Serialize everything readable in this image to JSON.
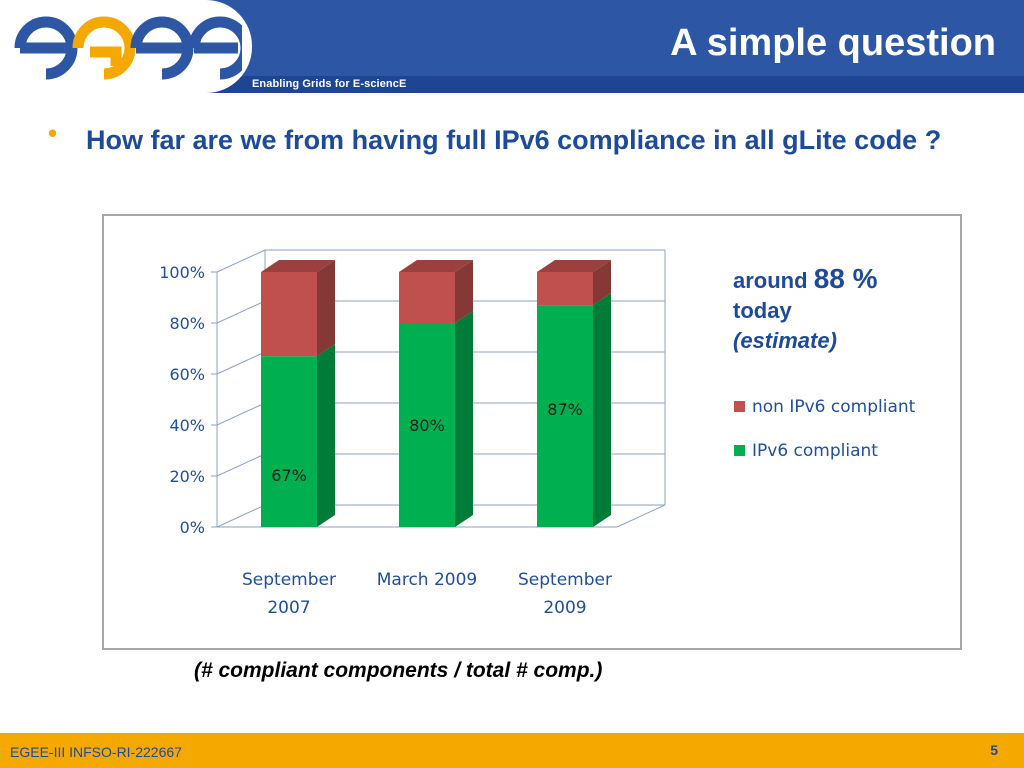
{
  "header": {
    "logo_text": "egee",
    "tagline": "Enabling Grids for E-sciencE",
    "title": "A simple question"
  },
  "bullet": {
    "text": "How far are we from having full IPv6 compliance in all gLite code ?"
  },
  "note": {
    "around": "around",
    "percent": "88 %",
    "today": "today",
    "estimate": "(estimate)"
  },
  "caption": "(# compliant components / total # comp.)",
  "footer": {
    "left": "EGEE-III INFSO-RI-222667",
    "page": "5"
  },
  "colors": {
    "header_blue": "#2d57a5",
    "text_blue": "#1e4a9a",
    "footer_orange": "#f5a800",
    "compliant_green": "#00b050",
    "noncompliant_red": "#c0504d"
  },
  "chart_data": {
    "type": "bar",
    "stacked": true,
    "three_d": true,
    "categories": [
      [
        "September",
        "2007"
      ],
      [
        "March 2009"
      ],
      [
        "September",
        "2009"
      ]
    ],
    "series": [
      {
        "name": "IPv6 compliant",
        "values": [
          67,
          80,
          87
        ],
        "color": "#00b050",
        "labels": [
          "67%",
          "80%",
          "87%"
        ]
      },
      {
        "name": "non IPv6 compliant",
        "values": [
          33,
          20,
          13
        ],
        "color": "#c0504d"
      }
    ],
    "y_ticks": [
      "0%",
      "20%",
      "40%",
      "60%",
      "80%",
      "100%"
    ],
    "ylim": [
      0,
      100
    ],
    "grid": true,
    "legend_position": "right"
  }
}
